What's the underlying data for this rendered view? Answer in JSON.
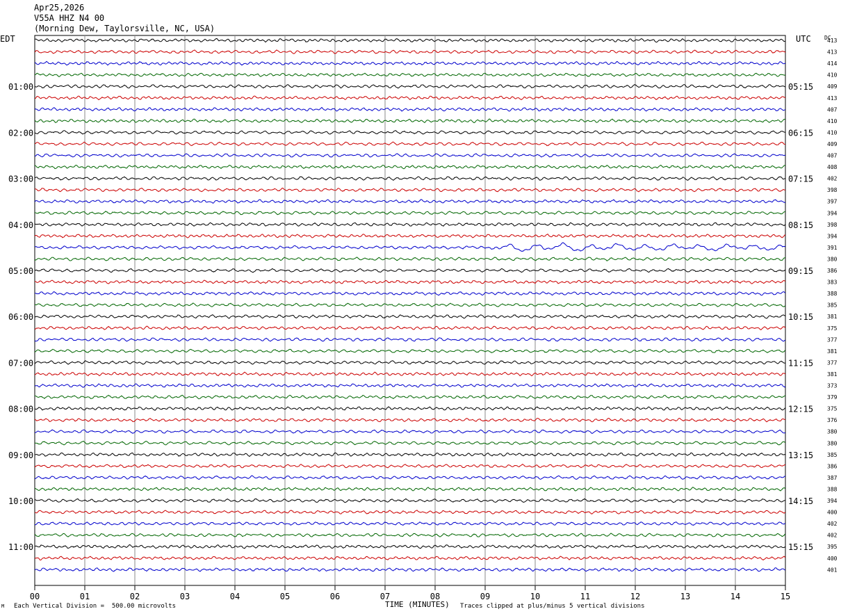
{
  "header": {
    "date": "Apr25,2026",
    "station": "V55A HHZ N4 00",
    "location": "(Morning Dew, Taylorsville, NC, USA)"
  },
  "axes": {
    "left_zone": "EDT",
    "right_zone": "UTC",
    "dc_label": "DC",
    "x_label": "TIME (MINUTES)",
    "x_ticks": [
      "00",
      "01",
      "02",
      "03",
      "04",
      "05",
      "06",
      "07",
      "08",
      "09",
      "10",
      "11",
      "12",
      "13",
      "14",
      "15"
    ]
  },
  "footer": {
    "left_mark": "M",
    "scale_note": "Each Vertical Division =  500.00 microvolts",
    "clip_note": "Traces clipped at plus/minus 5 vertical divisions"
  },
  "chart_data": {
    "type": "line",
    "title": "",
    "xlabel": "TIME (MINUTES)",
    "ylabel": "",
    "xlim": [
      0,
      15
    ],
    "grid": true,
    "trace_colors": [
      "#000000",
      "#cc0000",
      "#0000cc",
      "#006600"
    ],
    "minutes_per_line": 15,
    "edt_hour_labels": [
      "01:00",
      "02:00",
      "03:00",
      "04:00",
      "05:00",
      "06:00",
      "07:00",
      "08:00",
      "09:00",
      "10:00",
      "11:00"
    ],
    "utc_hour_labels": [
      "05:15",
      "06:15",
      "07:15",
      "08:15",
      "09:15",
      "10:15",
      "11:15",
      "12:15",
      "13:15",
      "14:15",
      "15:15"
    ],
    "dc_offsets": [
      413,
      413,
      414,
      410,
      409,
      413,
      407,
      410,
      410,
      409,
      407,
      408,
      402,
      398,
      397,
      394,
      398,
      394,
      391,
      380,
      386,
      383,
      388,
      385,
      381,
      375,
      377,
      381,
      377,
      381,
      373,
      379,
      375,
      376,
      380,
      380,
      385,
      386,
      387,
      388,
      394,
      400,
      402,
      402,
      395,
      400,
      401
    ],
    "events": [
      {
        "trace_index": 18,
        "start_minute": 9.0,
        "end_minute": 15.0,
        "description": "larger long-period oscillation"
      }
    ]
  }
}
